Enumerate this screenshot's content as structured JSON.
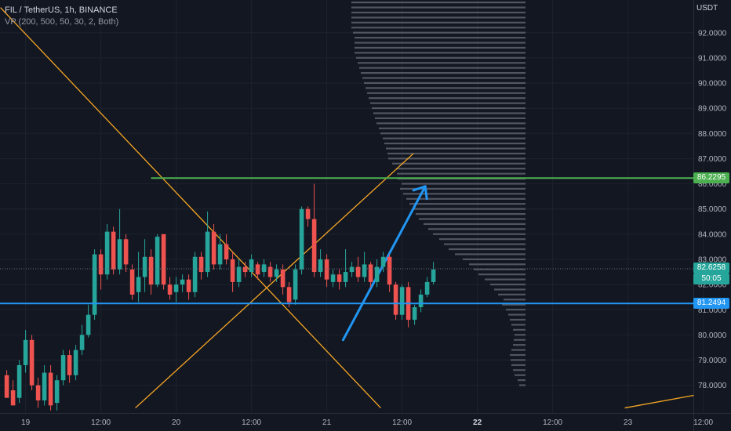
{
  "legend": {
    "symbol_line": "FIL / TetherUS, 1h, BINANCE",
    "indicator_line": "VP (200, 500, 50, 30, 2, Both)"
  },
  "currency": "USDT",
  "badges": {
    "green_level": "86.2295",
    "last_price": "82.6258",
    "countdown": "50:05",
    "blue_level": "81.2494"
  },
  "colors": {
    "background": "#131722",
    "up": "#26a69a",
    "down": "#ef5350",
    "orange_lines": "#f5a623",
    "green_level": "#4caf50",
    "blue_level": "#2196f3",
    "arrow": "#2196f3",
    "volume_profile": "#5d606b"
  },
  "chart_data": {
    "type": "candlestick",
    "symbol": "FIL / TetherUS",
    "interval": "1h",
    "exchange": "BINANCE",
    "y_ticks": [
      "78.0000",
      "79.0000",
      "80.0000",
      "81.0000",
      "82.0000",
      "83.0000",
      "84.0000",
      "85.0000",
      "86.0000",
      "87.0000",
      "88.0000",
      "89.0000",
      "90.0000",
      "91.0000",
      "92.0000"
    ],
    "y_range": [
      76.9,
      93.3
    ],
    "x_ticks": [
      {
        "label": "19",
        "i": 3
      },
      {
        "label": "12:00",
        "i": 15
      },
      {
        "label": "20",
        "i": 27
      },
      {
        "label": "12:00",
        "i": 39
      },
      {
        "label": "21",
        "i": 51
      },
      {
        "label": "12:00",
        "i": 63
      },
      {
        "label": "22",
        "i": 75
      },
      {
        "label": "12:00",
        "i": 87
      },
      {
        "label": "23",
        "i": 99
      },
      {
        "label": "12:00",
        "i": 111
      }
    ],
    "candles": [
      [
        78.4,
        77.5,
        77.8,
        78.6
      ],
      [
        77.8,
        77.2,
        77.4,
        78.2
      ],
      [
        77.5,
        78.8,
        79.0,
        77.3
      ],
      [
        78.8,
        79.8,
        80.2,
        78.5
      ],
      [
        79.8,
        78.0,
        80.0,
        77.8
      ],
      [
        78.0,
        77.4,
        78.3,
        77.1
      ],
      [
        77.4,
        78.5,
        78.8,
        77.2
      ],
      [
        78.5,
        77.2,
        78.8,
        77.0
      ],
      [
        77.3,
        78.2,
        78.4,
        77.0
      ],
      [
        78.2,
        79.2,
        79.4,
        78.0
      ],
      [
        79.2,
        78.4,
        79.4,
        78.1
      ],
      [
        78.4,
        79.4,
        79.6,
        78.2
      ],
      [
        79.4,
        80.0,
        80.4,
        79.2
      ],
      [
        80.0,
        80.8,
        81.2,
        79.9
      ],
      [
        80.8,
        83.2,
        83.4,
        80.6
      ],
      [
        83.2,
        82.4,
        83.4,
        81.8
      ],
      [
        82.4,
        84.1,
        84.4,
        82.2
      ],
      [
        84.1,
        82.6,
        84.3,
        82.4
      ],
      [
        82.6,
        83.8,
        85.0,
        82.4
      ],
      [
        83.8,
        82.8,
        84.0,
        82.5
      ],
      [
        82.6,
        81.6,
        82.8,
        81.4
      ],
      [
        81.7,
        82.3,
        83.3,
        81.3
      ],
      [
        82.3,
        83.1,
        83.8,
        81.7
      ],
      [
        83.1,
        82.0,
        83.4,
        81.6
      ],
      [
        82.0,
        83.9,
        84.0,
        81.9
      ],
      [
        84.0,
        82.0,
        84.0,
        81.8
      ],
      [
        82.0,
        81.6,
        82.3,
        81.4
      ],
      [
        81.7,
        82.0,
        82.3,
        81.3
      ],
      [
        82.0,
        82.2,
        82.4,
        81.7
      ],
      [
        82.2,
        81.7,
        82.4,
        81.4
      ],
      [
        81.7,
        83.1,
        83.3,
        81.5
      ],
      [
        83.1,
        82.5,
        83.3,
        82.2
      ],
      [
        82.5,
        84.1,
        84.9,
        82.3
      ],
      [
        84.1,
        82.8,
        84.4,
        82.6
      ],
      [
        82.8,
        83.6,
        84.0,
        82.6
      ],
      [
        83.6,
        83.0,
        84.0,
        82.8
      ],
      [
        83.0,
        82.1,
        83.3,
        81.7
      ],
      [
        82.1,
        82.7,
        83.0,
        81.9
      ],
      [
        82.7,
        82.5,
        82.9,
        82.3
      ],
      [
        82.5,
        83.0,
        83.2,
        82.3
      ],
      [
        82.8,
        82.4,
        82.9,
        82.2
      ],
      [
        82.5,
        82.8,
        83.0,
        82.3
      ],
      [
        82.7,
        82.3,
        82.9,
        82.1
      ],
      [
        82.3,
        82.6,
        82.8,
        82.1
      ],
      [
        82.6,
        81.9,
        82.8,
        81.6
      ],
      [
        81.9,
        81.3,
        82.1,
        81.1
      ],
      [
        81.4,
        82.6,
        82.8,
        81.2
      ],
      [
        82.6,
        85.0,
        85.1,
        82.4
      ],
      [
        85.0,
        84.6,
        85.1,
        84.3
      ],
      [
        84.6,
        82.5,
        86.0,
        82.3
      ],
      [
        82.5,
        83.0,
        83.4,
        82.3
      ],
      [
        83.0,
        82.2,
        83.2,
        81.9
      ],
      [
        82.1,
        82.4,
        82.6,
        81.9
      ],
      [
        82.4,
        82.1,
        82.6,
        81.8
      ],
      [
        82.1,
        82.5,
        83.4,
        81.9
      ],
      [
        82.5,
        82.7,
        82.9,
        82.3
      ],
      [
        82.7,
        82.3,
        83.1,
        82.1
      ],
      [
        82.3,
        82.8,
        83.3,
        82.1
      ],
      [
        82.8,
        82.1,
        82.9,
        81.9
      ],
      [
        82.1,
        82.7,
        83.0,
        81.9
      ],
      [
        82.7,
        83.1,
        83.3,
        82.5
      ],
      [
        83.1,
        82.0,
        83.2,
        81.7
      ],
      [
        82.0,
        80.8,
        82.1,
        80.6
      ],
      [
        80.8,
        81.9,
        82.0,
        80.6
      ],
      [
        81.9,
        80.6,
        82.1,
        80.3
      ],
      [
        80.6,
        81.1,
        81.2,
        80.4
      ],
      [
        81.1,
        81.6,
        81.8,
        80.9
      ],
      [
        81.6,
        82.1,
        82.3,
        81.5
      ],
      [
        82.1,
        82.6,
        82.9,
        82.0
      ]
    ],
    "horizontal_levels": [
      {
        "price": 86.2295,
        "color": "green"
      },
      {
        "price": 81.2494,
        "color": "blue"
      }
    ],
    "last_price": 82.6258,
    "volume_profile": [
      [
        78.0,
        8
      ],
      [
        78.2,
        10
      ],
      [
        78.4,
        14
      ],
      [
        78.6,
        16
      ],
      [
        78.8,
        18
      ],
      [
        79.0,
        19
      ],
      [
        79.2,
        20
      ],
      [
        79.4,
        18
      ],
      [
        79.6,
        16
      ],
      [
        79.8,
        15
      ],
      [
        80.0,
        14
      ],
      [
        80.2,
        16
      ],
      [
        80.4,
        18
      ],
      [
        80.6,
        20
      ],
      [
        80.8,
        22
      ],
      [
        81.0,
        25
      ],
      [
        81.2,
        30
      ],
      [
        81.4,
        28
      ],
      [
        81.6,
        35
      ],
      [
        81.8,
        40
      ],
      [
        82.0,
        45
      ],
      [
        82.2,
        52
      ],
      [
        82.4,
        60
      ],
      [
        82.6,
        66
      ],
      [
        82.8,
        72
      ],
      [
        83.0,
        80
      ],
      [
        83.2,
        90
      ],
      [
        83.4,
        98
      ],
      [
        83.6,
        104
      ],
      [
        83.8,
        110
      ],
      [
        84.0,
        118
      ],
      [
        84.2,
        124
      ],
      [
        84.4,
        130
      ],
      [
        84.6,
        136
      ],
      [
        84.8,
        140
      ],
      [
        85.0,
        142
      ],
      [
        85.2,
        148
      ],
      [
        85.4,
        152
      ],
      [
        85.6,
        156
      ],
      [
        85.8,
        160
      ],
      [
        86.0,
        158
      ],
      [
        86.2,
        163
      ],
      [
        86.4,
        164
      ],
      [
        86.6,
        165
      ],
      [
        86.8,
        170
      ],
      [
        87.0,
        175
      ],
      [
        87.2,
        176
      ],
      [
        87.4,
        178
      ],
      [
        87.6,
        180
      ],
      [
        87.8,
        182
      ],
      [
        88.0,
        185
      ],
      [
        88.2,
        187
      ],
      [
        88.4,
        190
      ],
      [
        88.6,
        192
      ],
      [
        88.8,
        194
      ],
      [
        89.0,
        196
      ],
      [
        89.2,
        198
      ],
      [
        89.4,
        200
      ],
      [
        89.6,
        202
      ],
      [
        89.8,
        204
      ],
      [
        90.0,
        206
      ],
      [
        90.2,
        208
      ],
      [
        90.4,
        210
      ],
      [
        90.6,
        212
      ],
      [
        90.8,
        214
      ],
      [
        91.0,
        216
      ],
      [
        91.2,
        218
      ],
      [
        91.4,
        218
      ],
      [
        91.6,
        218
      ],
      [
        91.8,
        218
      ],
      [
        92.0,
        220
      ],
      [
        92.2,
        222
      ],
      [
        92.4,
        222
      ],
      [
        92.6,
        222
      ],
      [
        92.8,
        222
      ],
      [
        93.0,
        222
      ],
      [
        93.2,
        222
      ]
    ]
  }
}
